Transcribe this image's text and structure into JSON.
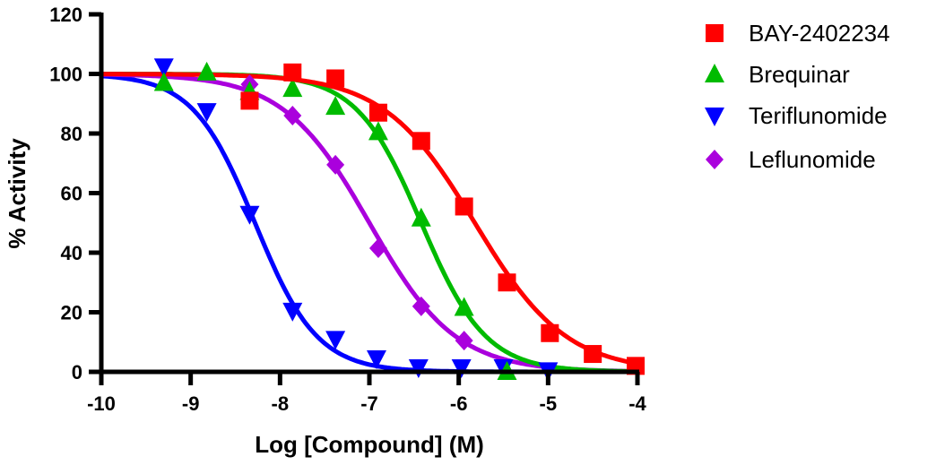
{
  "chart_data": {
    "type": "scatter",
    "title": "",
    "xlabel": "Log [Compound] (M)",
    "ylabel": "% Activity",
    "xlim": [
      -10,
      -4
    ],
    "ylim": [
      0,
      120
    ],
    "xticks": [
      -10,
      -9,
      -8,
      -7,
      -6,
      -5,
      -4
    ],
    "yticks": [
      0,
      20,
      40,
      60,
      80,
      100,
      120
    ],
    "xtick_labels": [
      "-10",
      "-9",
      "-8",
      "-7",
      "-6",
      "-5",
      "-4"
    ],
    "ytick_labels": [
      "0",
      "20",
      "40",
      "60",
      "80",
      "100",
      "120"
    ],
    "grid": false,
    "legend_position": "top-right",
    "series": [
      {
        "name": "BAY-2402234",
        "color": "#ff0000",
        "marker": "square",
        "x": [
          -8.34,
          -7.86,
          -7.38,
          -6.9,
          -6.42,
          -5.94,
          -5.46,
          -4.98,
          -4.5,
          -4.02
        ],
        "y": [
          91,
          100.5,
          98.5,
          87,
          77.5,
          55.5,
          30,
          13,
          6,
          2
        ],
        "fit": {
          "top": 100,
          "bottom": 0,
          "logIC50": -5.82,
          "hill": 0.85
        }
      },
      {
        "name": "Brequinar",
        "color": "#00bb00",
        "marker": "triangle-up",
        "x": [
          -9.3,
          -8.82,
          -8.34,
          -7.86,
          -7.38,
          -6.9,
          -6.42,
          -5.94,
          -5.46
        ],
        "y": [
          97,
          100.5,
          94,
          95,
          89,
          80.5,
          51.5,
          21.5,
          0
        ],
        "fit": {
          "top": 100,
          "bottom": 0,
          "logIC50": -6.42,
          "hill": 1.2
        }
      },
      {
        "name": "Teriflunomide",
        "color": "#0000ff",
        "marker": "triangle-down",
        "x": [
          -9.3,
          -8.82,
          -8.34,
          -7.86,
          -7.38,
          -6.92,
          -6.45,
          -5.97,
          -5.5,
          -5.0
        ],
        "y": [
          102.5,
          87.5,
          53,
          20.5,
          11,
          4.5,
          1.5,
          1.5,
          1.5,
          0.5
        ],
        "fit": {
          "top": 100,
          "bottom": 0,
          "logIC50": -8.28,
          "hill": 1.25
        }
      },
      {
        "name": "Leflunomide",
        "color": "#aa00dd",
        "marker": "diamond",
        "x": [
          -8.34,
          -7.86,
          -7.38,
          -6.9,
          -6.42,
          -5.94
        ],
        "y": [
          96.5,
          86,
          69.5,
          41.5,
          22,
          10.5
        ],
        "fit": {
          "top": 100,
          "bottom": 0,
          "logIC50": -7.0,
          "hill": 0.9
        }
      }
    ]
  }
}
